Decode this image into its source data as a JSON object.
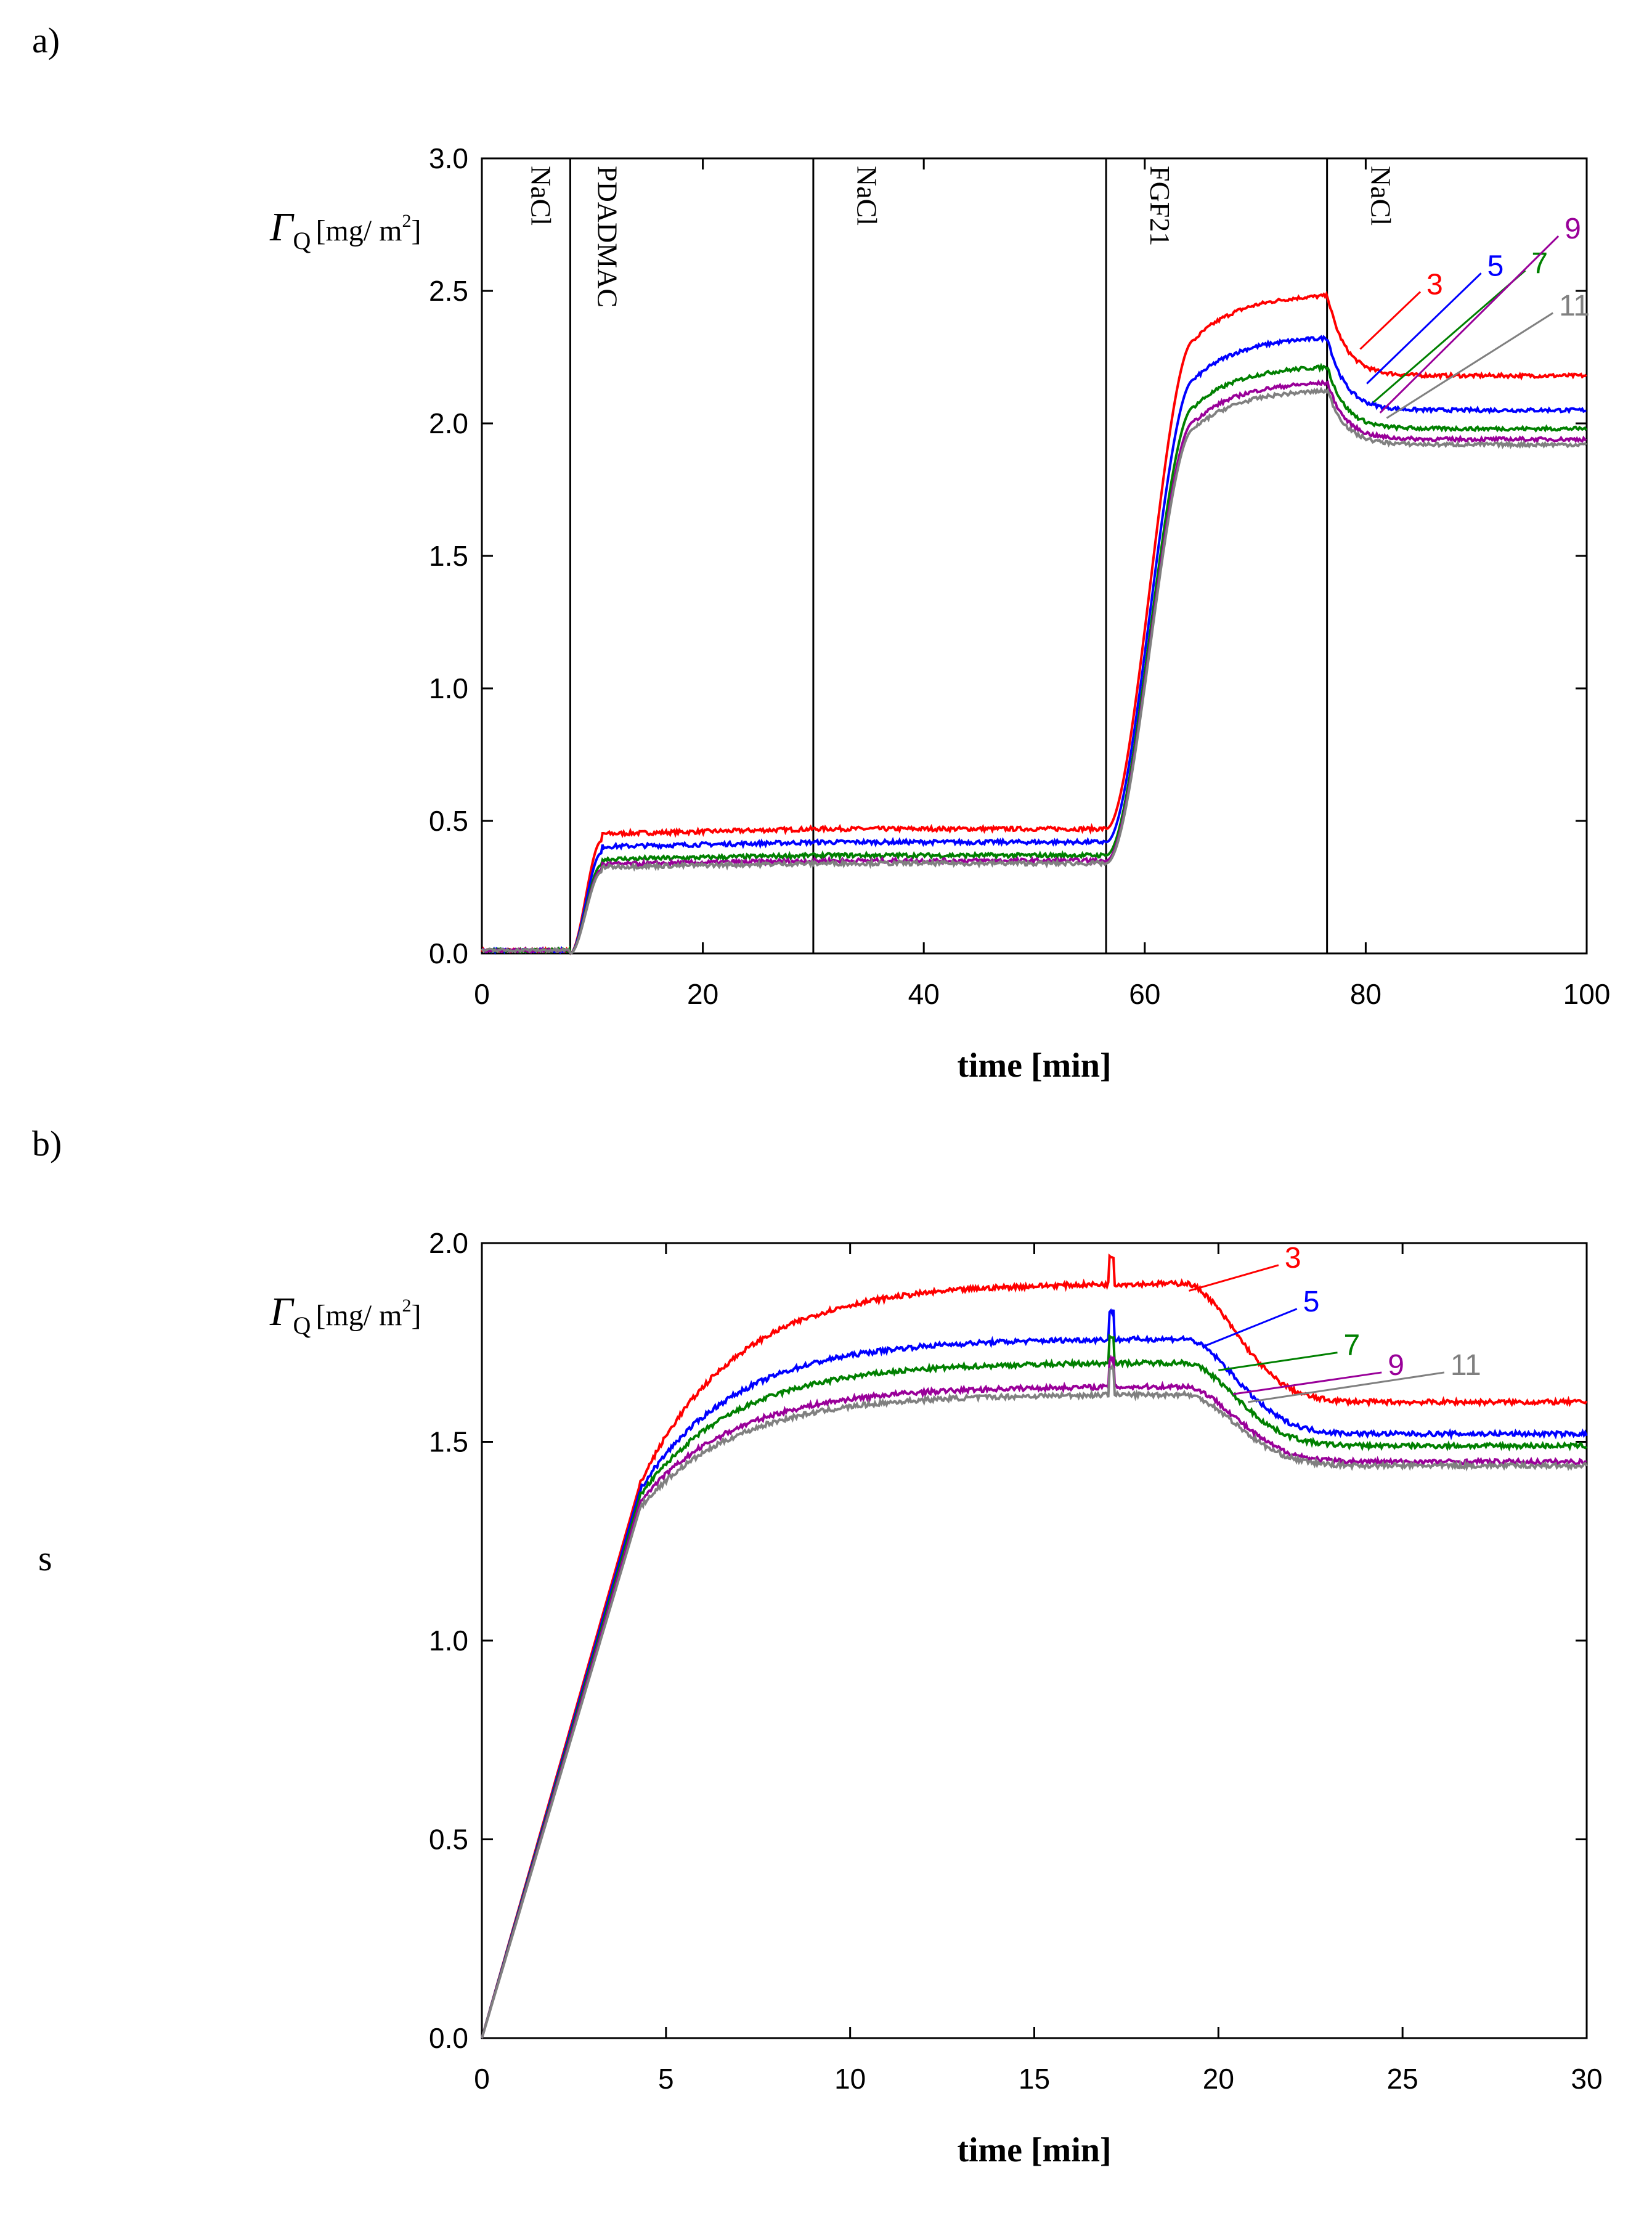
{
  "panels": {
    "a_label": "a)",
    "b_label": "b)",
    "stray_text": "s"
  },
  "chart_data": [
    {
      "id": "a",
      "type": "line",
      "xlabel": "time [min]",
      "ylabel": "Γ_Q [mg/ m²]",
      "ylabel_symbol": "Γ",
      "ylabel_sub": "Q",
      "ylabel_unit": "[mg/ m",
      "ylabel_sup": "2",
      "ylabel_close": "]",
      "xlim": [
        0,
        100
      ],
      "ylim": [
        0.0,
        3.0
      ],
      "xticks": [
        0,
        20,
        40,
        60,
        80,
        100
      ],
      "yticks": [
        "0.0",
        "0.5",
        "1.0",
        "1.5",
        "2.0",
        "2.5",
        "3.0"
      ],
      "phase_lines": [
        8,
        30,
        56.5,
        76.5
      ],
      "phase_labels": [
        {
          "text": "NaCl",
          "x": 4.5
        },
        {
          "text": "PDADMAC",
          "x": 10.5
        },
        {
          "text": "NaCl",
          "x": 34
        },
        {
          "text": "FGF21",
          "x": 60.5
        },
        {
          "text": "NaCl",
          "x": 80.5
        }
      ],
      "series": [
        {
          "name": "3",
          "color": "#ff0000",
          "base": 0.47,
          "plateau": 2.49,
          "final": 2.18
        },
        {
          "name": "5",
          "color": "#0000ff",
          "base": 0.42,
          "plateau": 2.33,
          "final": 2.05
        },
        {
          "name": "7",
          "color": "#008000",
          "base": 0.37,
          "plateau": 2.22,
          "final": 1.98
        },
        {
          "name": "9",
          "color": "#990099",
          "base": 0.35,
          "plateau": 2.16,
          "final": 1.94
        },
        {
          "name": "11",
          "color": "#808080",
          "base": 0.34,
          "plateau": 2.13,
          "final": 1.92
        }
      ],
      "series_label_anchors": [
        {
          "name": "3",
          "x": 85.5,
          "y": 2.52
        },
        {
          "name": "5",
          "x": 91,
          "y": 2.59
        },
        {
          "name": "7",
          "x": 95,
          "y": 2.6
        },
        {
          "name": "9",
          "x": 98,
          "y": 2.73
        },
        {
          "name": "11",
          "x": 97.5,
          "y": 2.44
        }
      ]
    },
    {
      "id": "b",
      "type": "line",
      "xlabel": "time [min]",
      "ylabel": "Γ_Q [mg/ m²]",
      "ylabel_symbol": "Γ",
      "ylabel_sub": "Q",
      "ylabel_unit": "[mg/ m",
      "ylabel_sup": "2",
      "ylabel_close": "]",
      "xlim": [
        0,
        30
      ],
      "ylim": [
        0.0,
        2.0
      ],
      "xticks": [
        0,
        5,
        10,
        15,
        20,
        25,
        30
      ],
      "yticks": [
        "0.0",
        "0.5",
        "1.0",
        "1.5",
        "2.0"
      ],
      "series": [
        {
          "name": "3",
          "color": "#ff0000",
          "plateau": 1.9,
          "final": 1.6
        },
        {
          "name": "5",
          "color": "#0000ff",
          "plateau": 1.76,
          "final": 1.52
        },
        {
          "name": "7",
          "color": "#008000",
          "plateau": 1.7,
          "final": 1.49
        },
        {
          "name": "9",
          "color": "#990099",
          "plateau": 1.64,
          "final": 1.45
        },
        {
          "name": "11",
          "color": "#808080",
          "plateau": 1.62,
          "final": 1.44
        }
      ],
      "series_label_anchors": [
        {
          "name": "3",
          "x": 21.8,
          "y": 1.96
        },
        {
          "name": "5",
          "x": 22.3,
          "y": 1.85
        },
        {
          "name": "7",
          "x": 23.4,
          "y": 1.74
        },
        {
          "name": "9",
          "x": 24.6,
          "y": 1.69
        },
        {
          "name": "11",
          "x": 26.3,
          "y": 1.69
        }
      ]
    }
  ]
}
